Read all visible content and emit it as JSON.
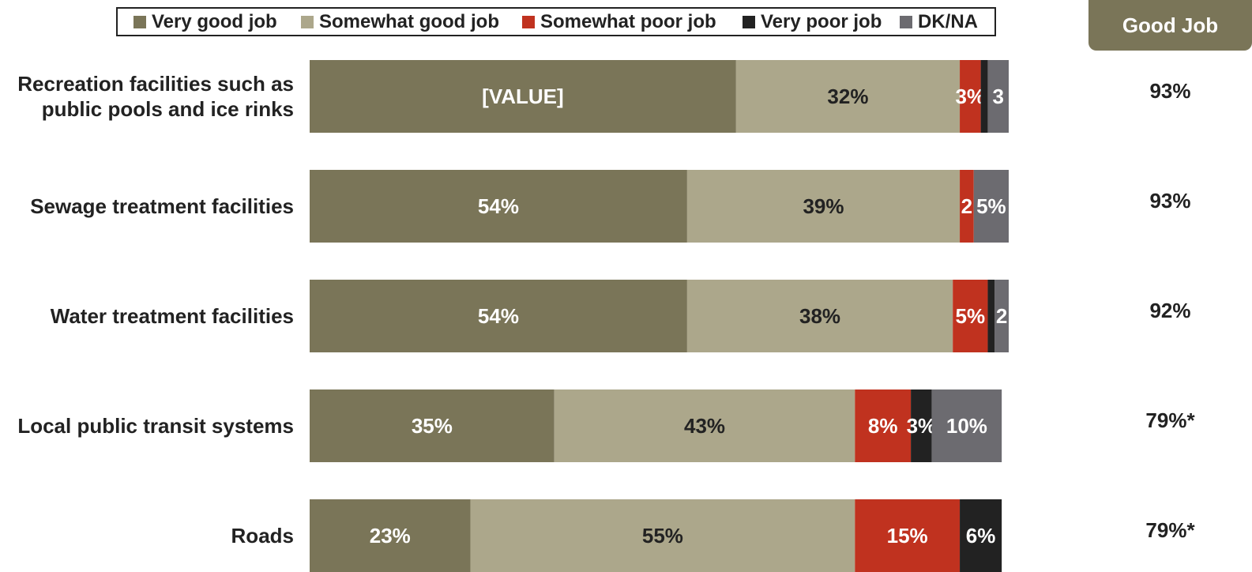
{
  "legend": [
    {
      "label": "Very good job",
      "color": "#7a7558"
    },
    {
      "label": "Somewhat good job",
      "color": "#aca78b"
    },
    {
      "label": "Somewhat poor job",
      "color": "#c0321f"
    },
    {
      "label": "Very poor job",
      "color": "#222222"
    },
    {
      "label": "DK/NA",
      "color": "#6c6b70"
    }
  ],
  "good_job_header": "Good Job",
  "chart_data": {
    "type": "bar",
    "orientation": "horizontal",
    "stacked": true,
    "categories": [
      [
        "Recreation facilities such as",
        "public pools and ice rinks"
      ],
      [
        "Sewage treatment facilities"
      ],
      [
        "Water treatment facilities"
      ],
      [
        "Local public transit systems"
      ],
      [
        "Roads"
      ]
    ],
    "series": [
      {
        "name": "Very good job",
        "color": "#7a7558",
        "label_color": "#ffffff",
        "values": [
          61,
          54,
          54,
          35,
          23
        ],
        "labels": [
          "[VALUE]",
          "54%",
          "54%",
          "35%",
          "23%"
        ]
      },
      {
        "name": "Somewhat good job",
        "color": "#aca78b",
        "label_color": "#222222",
        "values": [
          32,
          39,
          38,
          43,
          55
        ],
        "labels": [
          "32%",
          "39%",
          "38%",
          "43%",
          "55%"
        ]
      },
      {
        "name": "Somewhat poor job",
        "color": "#c0321f",
        "label_color": "#ffffff",
        "values": [
          3,
          2,
          5,
          8,
          15
        ],
        "labels": [
          "3%",
          "2",
          "5%",
          "8%",
          "15%"
        ]
      },
      {
        "name": "Very poor job",
        "color": "#222222",
        "label_color": "#ffffff",
        "values": [
          1,
          0,
          1,
          3,
          6
        ],
        "labels": [
          "",
          "",
          "",
          "3%",
          "6%"
        ]
      },
      {
        "name": "DK/NA",
        "color": "#6c6b70",
        "label_color": "#ffffff",
        "values": [
          3,
          5,
          2,
          10,
          0
        ],
        "labels": [
          "3",
          "5%",
          "2",
          "10%",
          ""
        ]
      }
    ],
    "good_job": [
      "93%",
      "93%",
      "92%",
      "79%*",
      "79%*"
    ],
    "xlim": [
      0,
      100
    ]
  }
}
